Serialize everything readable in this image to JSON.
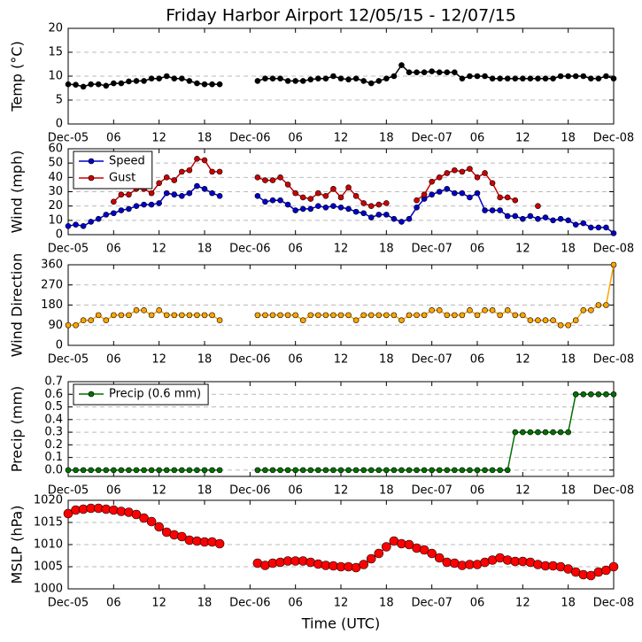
{
  "chart_data": [
    {
      "type": "line",
      "title": "Friday Harbor Airport 12/05/15 - 12/07/15",
      "ylabel": "Temp (°C)",
      "x": [
        0,
        1,
        2,
        3,
        4,
        5,
        6,
        7,
        8,
        9,
        10,
        11,
        12,
        13,
        14,
        15,
        16,
        17,
        18,
        19,
        20,
        21,
        22,
        23,
        24,
        25,
        26,
        27,
        28,
        29,
        30,
        31,
        32,
        33,
        34,
        35,
        36,
        37,
        38,
        39,
        40,
        41,
        42,
        43,
        44,
        45,
        46,
        47,
        48,
        49,
        50,
        51,
        52,
        53,
        54,
        55,
        56,
        57,
        58,
        59,
        60,
        61,
        62,
        63,
        64,
        65,
        66,
        67,
        68,
        69,
        70,
        71,
        72
      ],
      "xlim": [
        0,
        72
      ],
      "xticks": [
        {
          "value": 0,
          "label": "Dec-05"
        },
        {
          "value": 6,
          "label": "06"
        },
        {
          "value": 12,
          "label": "12"
        },
        {
          "value": 18,
          "label": "18"
        },
        {
          "value": 24,
          "label": "Dec-06"
        },
        {
          "value": 30,
          "label": "06"
        },
        {
          "value": 36,
          "label": "12"
        },
        {
          "value": 42,
          "label": "18"
        },
        {
          "value": 48,
          "label": "Dec-07"
        },
        {
          "value": 54,
          "label": "06"
        },
        {
          "value": 60,
          "label": "12"
        },
        {
          "value": 66,
          "label": "18"
        },
        {
          "value": 72,
          "label": "Dec-08"
        }
      ],
      "ylim": [
        0,
        20
      ],
      "yticks": [
        0,
        5,
        10,
        15,
        20
      ],
      "grid": true,
      "series": [
        {
          "color": "#000000",
          "values": [
            8.3,
            8.2,
            7.8,
            8.3,
            8.3,
            8,
            8.5,
            8.5,
            8.9,
            9,
            9,
            9.5,
            9.5,
            10,
            9.5,
            9.5,
            9,
            8.5,
            8.3,
            8.3,
            8.3,
            null,
            null,
            null,
            null,
            9,
            9.5,
            9.5,
            9.5,
            9,
            9,
            9,
            9.3,
            9.5,
            9.5,
            10,
            9.5,
            9.3,
            9.5,
            9,
            8.5,
            9,
            9.5,
            10,
            12.3,
            10.8,
            10.8,
            10.8,
            11,
            10.8,
            10.8,
            10.8,
            9.5,
            10,
            10,
            10,
            9.5,
            9.5,
            9.5,
            9.5,
            9.5,
            9.5,
            9.5,
            9.5,
            9.5,
            10,
            10,
            10,
            10,
            9.5,
            9.5,
            10,
            9.5
          ]
        }
      ]
    },
    {
      "type": "line",
      "ylabel": "Wind (mph)",
      "x": [
        0,
        1,
        2,
        3,
        4,
        5,
        6,
        7,
        8,
        9,
        10,
        11,
        12,
        13,
        14,
        15,
        16,
        17,
        18,
        19,
        20,
        21,
        22,
        23,
        24,
        25,
        26,
        27,
        28,
        29,
        30,
        31,
        32,
        33,
        34,
        35,
        36,
        37,
        38,
        39,
        40,
        41,
        42,
        43,
        44,
        45,
        46,
        47,
        48,
        49,
        50,
        51,
        52,
        53,
        54,
        55,
        56,
        57,
        58,
        59,
        60,
        61,
        62,
        63,
        64,
        65,
        66,
        67,
        68,
        69,
        70,
        71,
        72
      ],
      "xlim": [
        0,
        72
      ],
      "xticks": [
        {
          "value": 0,
          "label": "Dec-05"
        },
        {
          "value": 6,
          "label": "06"
        },
        {
          "value": 12,
          "label": "12"
        },
        {
          "value": 18,
          "label": "18"
        },
        {
          "value": 24,
          "label": "Dec-06"
        },
        {
          "value": 30,
          "label": "06"
        },
        {
          "value": 36,
          "label": "12"
        },
        {
          "value": 42,
          "label": "18"
        },
        {
          "value": 48,
          "label": "Dec-07"
        },
        {
          "value": 54,
          "label": "06"
        },
        {
          "value": 60,
          "label": "12"
        },
        {
          "value": 66,
          "label": "18"
        },
        {
          "value": 72,
          "label": "Dec-08"
        }
      ],
      "ylim": [
        0,
        60
      ],
      "yticks": [
        0,
        10,
        20,
        30,
        40,
        50,
        60
      ],
      "grid": true,
      "legend": "upper left",
      "series": [
        {
          "name": "Speed",
          "color": "#0000cc",
          "values": [
            6,
            7,
            6,
            9,
            11,
            14,
            15,
            17,
            18,
            20,
            21,
            21,
            22,
            29,
            28,
            27,
            29,
            34,
            32,
            29,
            27,
            null,
            null,
            null,
            null,
            27,
            23,
            24,
            24,
            21,
            17,
            18,
            18,
            20,
            19,
            20,
            19,
            18,
            16,
            15,
            12,
            14,
            14,
            11,
            9,
            11,
            19,
            25,
            28,
            30,
            32,
            29,
            29,
            26,
            29,
            17,
            17,
            17,
            13,
            13,
            11,
            13,
            11,
            12,
            10,
            11,
            10,
            7,
            8,
            5,
            5,
            5,
            1
          ]
        },
        {
          "name": "Gust",
          "color": "#cc0000",
          "values": [
            null,
            null,
            null,
            null,
            null,
            null,
            23,
            28,
            28,
            32,
            32,
            29,
            36,
            40,
            38,
            44,
            45,
            53,
            52,
            44,
            44,
            null,
            null,
            null,
            null,
            40,
            38,
            38,
            40,
            35,
            29,
            26,
            25,
            29,
            27,
            32,
            26,
            33,
            27,
            22,
            20,
            21,
            22,
            null,
            null,
            null,
            24,
            28,
            37,
            40,
            43,
            45,
            44,
            46,
            40,
            43,
            36,
            26,
            26,
            24,
            null,
            null,
            20,
            null,
            null,
            null,
            null,
            null,
            null,
            null,
            null,
            null,
            null
          ]
        }
      ]
    },
    {
      "type": "line",
      "ylabel": "Wind Direction",
      "x": [
        0,
        1,
        2,
        3,
        4,
        5,
        6,
        7,
        8,
        9,
        10,
        11,
        12,
        13,
        14,
        15,
        16,
        17,
        18,
        19,
        20,
        21,
        22,
        23,
        24,
        25,
        26,
        27,
        28,
        29,
        30,
        31,
        32,
        33,
        34,
        35,
        36,
        37,
        38,
        39,
        40,
        41,
        42,
        43,
        44,
        45,
        46,
        47,
        48,
        49,
        50,
        51,
        52,
        53,
        54,
        55,
        56,
        57,
        58,
        59,
        60,
        61,
        62,
        63,
        64,
        65,
        66,
        67,
        68,
        69,
        70,
        71,
        72
      ],
      "xlim": [
        0,
        72
      ],
      "xticks": [
        {
          "value": 0,
          "label": "Dec-05"
        },
        {
          "value": 6,
          "label": "06"
        },
        {
          "value": 12,
          "label": "12"
        },
        {
          "value": 18,
          "label": "18"
        },
        {
          "value": 24,
          "label": "Dec-06"
        },
        {
          "value": 30,
          "label": "06"
        },
        {
          "value": 36,
          "label": "12"
        },
        {
          "value": 42,
          "label": "18"
        },
        {
          "value": 48,
          "label": "Dec-07"
        },
        {
          "value": 54,
          "label": "06"
        },
        {
          "value": 60,
          "label": "12"
        },
        {
          "value": 66,
          "label": "18"
        },
        {
          "value": 72,
          "label": "Dec-08"
        }
      ],
      "ylim": [
        0,
        360
      ],
      "yticks": [
        0,
        90,
        180,
        270,
        360
      ],
      "grid": true,
      "series": [
        {
          "color": "#ffa500",
          "values": [
            90,
            90,
            112,
            112,
            135,
            112,
            135,
            135,
            135,
            157,
            157,
            135,
            157,
            135,
            135,
            135,
            135,
            135,
            135,
            135,
            112,
            null,
            null,
            null,
            null,
            135,
            135,
            135,
            135,
            135,
            135,
            112,
            135,
            135,
            135,
            135,
            135,
            135,
            112,
            135,
            135,
            135,
            135,
            135,
            112,
            135,
            135,
            135,
            157,
            157,
            135,
            135,
            135,
            157,
            135,
            157,
            157,
            135,
            157,
            135,
            135,
            112,
            112,
            112,
            112,
            90,
            90,
            112,
            157,
            157,
            180,
            180,
            360
          ]
        }
      ]
    },
    {
      "type": "line",
      "ylabel": "Precip (mm)",
      "x": [
        0,
        1,
        2,
        3,
        4,
        5,
        6,
        7,
        8,
        9,
        10,
        11,
        12,
        13,
        14,
        15,
        16,
        17,
        18,
        19,
        20,
        21,
        22,
        23,
        24,
        25,
        26,
        27,
        28,
        29,
        30,
        31,
        32,
        33,
        34,
        35,
        36,
        37,
        38,
        39,
        40,
        41,
        42,
        43,
        44,
        45,
        46,
        47,
        48,
        49,
        50,
        51,
        52,
        53,
        54,
        55,
        56,
        57,
        58,
        59,
        60,
        61,
        62,
        63,
        64,
        65,
        66,
        67,
        68,
        69,
        70,
        71,
        72
      ],
      "xlim": [
        0,
        72
      ],
      "xticks": [
        {
          "value": 0,
          "label": "Dec-05"
        },
        {
          "value": 6,
          "label": "06"
        },
        {
          "value": 12,
          "label": "12"
        },
        {
          "value": 18,
          "label": "18"
        },
        {
          "value": 24,
          "label": "Dec-06"
        },
        {
          "value": 30,
          "label": "06"
        },
        {
          "value": 36,
          "label": "12"
        },
        {
          "value": 42,
          "label": "18"
        },
        {
          "value": 48,
          "label": "Dec-07"
        },
        {
          "value": 54,
          "label": "06"
        },
        {
          "value": 60,
          "label": "12"
        },
        {
          "value": 66,
          "label": "18"
        },
        {
          "value": 72,
          "label": "Dec-08"
        }
      ],
      "ylim": [
        -0.05,
        0.7
      ],
      "yticks": [
        {
          "value": 0,
          "label": "0.0"
        },
        0.1,
        0.2,
        0.3,
        0.4,
        0.5,
        0.6,
        0.7
      ],
      "grid": true,
      "legend": "upper left",
      "series": [
        {
          "name": "Precip (0.6 mm)",
          "color": "#007000",
          "values": [
            0,
            0,
            0,
            0,
            0,
            0,
            0,
            0,
            0,
            0,
            0,
            0,
            0,
            0,
            0,
            0,
            0,
            0,
            0,
            0,
            0,
            null,
            null,
            null,
            null,
            0,
            0,
            0,
            0,
            0,
            0,
            0,
            0,
            0,
            0,
            0,
            0,
            0,
            0,
            0,
            0,
            0,
            0,
            0,
            0,
            0,
            0,
            0,
            0,
            0,
            0,
            0,
            0,
            0,
            0,
            0,
            0,
            0,
            0,
            0.3,
            0.3,
            0.3,
            0.3,
            0.3,
            0.3,
            0.3,
            0.3,
            0.6,
            0.6,
            0.6,
            0.6,
            0.6,
            0.6
          ]
        }
      ]
    },
    {
      "type": "line",
      "ylabel": "MSLP (hPa)",
      "xlabel": "Time (UTC)",
      "x": [
        0,
        1,
        2,
        3,
        4,
        5,
        6,
        7,
        8,
        9,
        10,
        11,
        12,
        13,
        14,
        15,
        16,
        17,
        18,
        19,
        20,
        21,
        22,
        23,
        24,
        25,
        26,
        27,
        28,
        29,
        30,
        31,
        32,
        33,
        34,
        35,
        36,
        37,
        38,
        39,
        40,
        41,
        42,
        43,
        44,
        45,
        46,
        47,
        48,
        49,
        50,
        51,
        52,
        53,
        54,
        55,
        56,
        57,
        58,
        59,
        60,
        61,
        62,
        63,
        64,
        65,
        66,
        67,
        68,
        69,
        70,
        71,
        72
      ],
      "xlim": [
        0,
        72
      ],
      "xticks": [
        {
          "value": 0,
          "label": "Dec-05"
        },
        {
          "value": 6,
          "label": "06"
        },
        {
          "value": 12,
          "label": "12"
        },
        {
          "value": 18,
          "label": "18"
        },
        {
          "value": 24,
          "label": "Dec-06"
        },
        {
          "value": 30,
          "label": "06"
        },
        {
          "value": 36,
          "label": "12"
        },
        {
          "value": 42,
          "label": "18"
        },
        {
          "value": 48,
          "label": "Dec-07"
        },
        {
          "value": 54,
          "label": "06"
        },
        {
          "value": 60,
          "label": "12"
        },
        {
          "value": 66,
          "label": "18"
        },
        {
          "value": 72,
          "label": "Dec-08"
        }
      ],
      "ylim": [
        1000,
        1020
      ],
      "yticks": [
        1000,
        1005,
        1010,
        1015,
        1020
      ],
      "grid": true,
      "series": [
        {
          "color": "#ff0000",
          "values": [
            1017,
            1017.8,
            1018,
            1018.2,
            1018.2,
            1018,
            1017.8,
            1017.5,
            1017.3,
            1016.8,
            1016,
            1015.2,
            1014,
            1012.8,
            1012.2,
            1011.8,
            1011,
            1010.8,
            1010.6,
            1010.6,
            1010.2,
            null,
            null,
            null,
            null,
            1005.8,
            1005.3,
            1005.8,
            1006,
            1006.3,
            1006.3,
            1006.3,
            1006,
            1005.6,
            1005.3,
            1005.2,
            1005,
            1005,
            1004.8,
            1005.5,
            1006.8,
            1008,
            1009.5,
            1010.8,
            1010.2,
            1010,
            1009.2,
            1008.8,
            1008,
            1007,
            1006,
            1005.8,
            1005.3,
            1005.5,
            1005.5,
            1006,
            1006.5,
            1007,
            1006.5,
            1006.2,
            1006.2,
            1006,
            1005.5,
            1005.2,
            1005.2,
            1005,
            1004.5,
            1003.8,
            1003.2,
            1003,
            1003.8,
            1004.2,
            1005
          ]
        }
      ]
    }
  ]
}
